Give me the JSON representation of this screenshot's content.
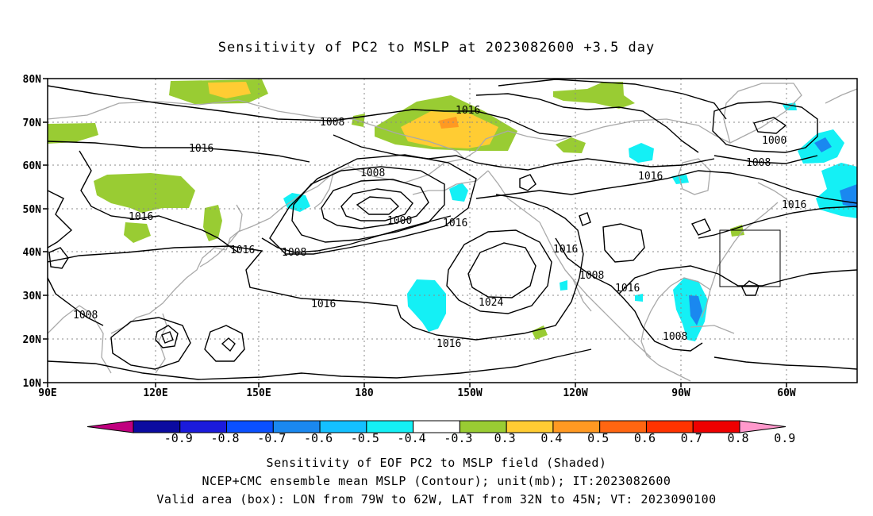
{
  "title": "Sensitivity of PC2 to MSLP at 2023082600 +3.5 day",
  "lat_labels": [
    "80N",
    "70N",
    "60N",
    "50N",
    "40N",
    "30N",
    "20N",
    "10N"
  ],
  "lon_labels": [
    "90E",
    "120E",
    "150E",
    "180",
    "150W",
    "120W",
    "90W",
    "60W"
  ],
  "contour_labels": [
    "1008",
    "1016",
    "1008",
    "1000",
    "1016",
    "1008",
    "1000",
    "1016",
    "1016",
    "1008",
    "1016",
    "1016",
    "1008",
    "1016",
    "1024",
    "1016",
    "1008",
    "1016",
    "1016",
    "1008",
    "1016"
  ],
  "colorbar": {
    "labels": [
      "-0.9",
      "-0.8",
      "-0.7",
      "-0.6",
      "-0.5",
      "-0.4",
      "-0.3",
      "0.3",
      "0.4",
      "0.5",
      "0.6",
      "0.7",
      "0.8",
      "0.9"
    ],
    "colors": [
      "#c0007f",
      "#0b0ba0",
      "#1b1bdc",
      "#0a50ff",
      "#1a88f0",
      "#14c0ff",
      "#14f0f5",
      "#ffffff",
      "#99cc33",
      "#ffcc33",
      "#ff9922",
      "#ff6611",
      "#ff3300",
      "#ee0000",
      "#ff99cc"
    ]
  },
  "captions": [
    "Sensitivity of EOF PC2 to MSLP field (Shaded)",
    "NCEP+CMC ensemble mean MSLP (Contour); unit(mb); IT:2023082600",
    "Valid area (box): LON from 79W to 62W, LAT from 32N to 45N; VT: 2023090100"
  ]
}
